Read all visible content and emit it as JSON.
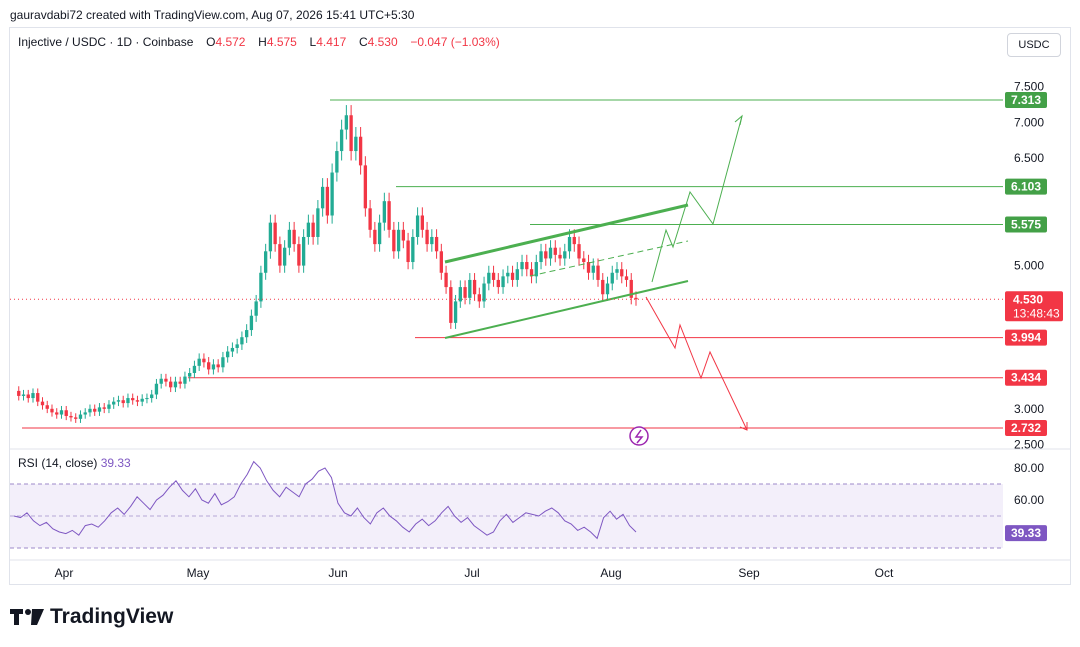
{
  "header": {
    "published_by": "gauravdabi72 created with TradingView.com, Aug 07, 2026 15:41 UTC+5:30"
  },
  "legend": {
    "symbol": "Injective / USDC · 1D · Coinbase",
    "open_label": "O",
    "open": "4.572",
    "high_label": "H",
    "high": "4.575",
    "low_label": "L",
    "low": "4.417",
    "close_label": "C",
    "close": "4.530",
    "change": "−0.047 (−1.03%)"
  },
  "currency_button": "USDC",
  "rsi": {
    "title": "RSI (14, close)",
    "value": "39.33",
    "ticks": [
      "80.00",
      "60.00"
    ],
    "badge": "39.33"
  },
  "branding": "TradingView",
  "chart_data": {
    "type": "candlestick",
    "price_axis_ticks": [
      "7.500",
      "7.000",
      "6.500",
      "5.000",
      "3.000",
      "2.500"
    ],
    "x_ticks": [
      "Apr",
      "May",
      "Jun",
      "Jul",
      "Aug",
      "Sep",
      "Oct"
    ],
    "last_price_badge": "4.530",
    "countdown_badge": "13:48:43",
    "levels": [
      {
        "label": "7.313",
        "value": 7.313,
        "kind": "resistance",
        "color": "#4caf50"
      },
      {
        "label": "6.103",
        "value": 6.103,
        "kind": "resistance",
        "color": "#4caf50"
      },
      {
        "label": "5.575",
        "value": 5.575,
        "kind": "resistance",
        "color": "#4caf50"
      },
      {
        "label": "3.994",
        "value": 3.994,
        "kind": "support",
        "color": "#f23645"
      },
      {
        "label": "3.434",
        "value": 3.434,
        "kind": "support",
        "color": "#f23645"
      },
      {
        "label": "2.732",
        "value": 2.732,
        "kind": "support",
        "color": "#f23645"
      }
    ],
    "colors": {
      "up": "#22ab94",
      "down": "#f23645",
      "channel": "#4caf50",
      "rsi_line": "#7e57c2",
      "rsi_band": "#f3effa",
      "rsi_overbought": "#c8e6c9"
    },
    "price_path": [
      3.25,
      3.18,
      3.2,
      3.15,
      3.22,
      3.1,
      3.05,
      3.0,
      2.95,
      2.92,
      2.98,
      2.9,
      2.88,
      2.86,
      2.92,
      2.95,
      3.0,
      2.96,
      3.02,
      3.0,
      3.06,
      3.1,
      3.12,
      3.08,
      3.15,
      3.12,
      3.1,
      3.14,
      3.15,
      3.2,
      3.35,
      3.42,
      3.38,
      3.3,
      3.38,
      3.35,
      3.45,
      3.5,
      3.6,
      3.7,
      3.65,
      3.55,
      3.62,
      3.58,
      3.72,
      3.8,
      3.85,
      3.9,
      4.0,
      4.1,
      4.3,
      4.5,
      4.9,
      5.2,
      5.6,
      5.3,
      5.0,
      5.25,
      5.5,
      5.3,
      5.0,
      5.4,
      5.6,
      5.4,
      5.8,
      6.1,
      5.7,
      6.3,
      6.6,
      6.9,
      7.1,
      6.6,
      6.8,
      6.4,
      5.8,
      5.5,
      5.3,
      5.6,
      5.9,
      5.5,
      5.2,
      5.5,
      5.35,
      5.05,
      5.4,
      5.7,
      5.5,
      5.3,
      5.4,
      5.2,
      4.9,
      4.7,
      4.2,
      4.5,
      4.7,
      4.55,
      4.8,
      4.6,
      4.5,
      4.75,
      4.9,
      4.8,
      4.7,
      4.85,
      4.9,
      4.8,
      4.95,
      5.05,
      4.95,
      4.85,
      5.05,
      5.2,
      5.1,
      5.25,
      5.15,
      5.1,
      5.2,
      5.4,
      5.3,
      5.1,
      5.05,
      4.9,
      5.0,
      4.8,
      4.6,
      4.75,
      4.9,
      4.95,
      4.85,
      4.8,
      4.55,
      4.53
    ],
    "rsi_path": [
      50,
      49,
      52,
      47,
      44,
      46,
      42,
      40,
      39,
      41,
      38,
      44,
      45,
      43,
      47,
      52,
      55,
      51,
      56,
      62,
      58,
      54,
      60,
      63,
      68,
      72,
      66,
      62,
      67,
      60,
      58,
      64,
      57,
      59,
      62,
      70,
      76,
      84,
      80,
      72,
      66,
      62,
      68,
      65,
      62,
      70,
      73,
      78,
      80,
      74,
      58,
      52,
      50,
      55,
      49,
      45,
      52,
      55,
      50,
      47,
      43,
      40,
      45,
      48,
      44,
      47,
      52,
      56,
      50,
      46,
      49,
      44,
      41,
      38,
      40,
      47,
      51,
      46,
      49,
      52,
      51,
      50,
      53,
      55,
      52,
      47,
      45,
      41,
      43,
      40,
      36,
      49,
      53,
      48,
      51,
      44,
      40
    ],
    "forecast": {
      "bullish": "breakout above channel towards 7.313",
      "bearish": "breakdown below channel towards 2.732"
    }
  }
}
